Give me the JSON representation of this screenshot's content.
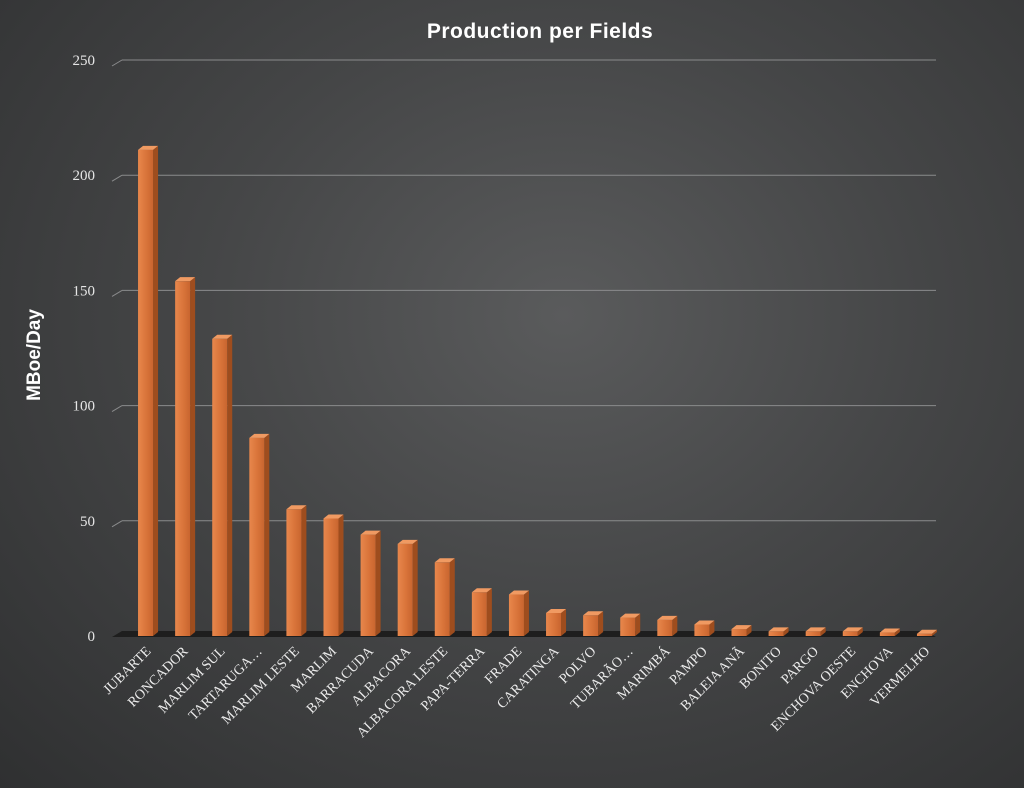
{
  "chart_data": {
    "type": "bar",
    "title": "Production per Fields",
    "ylabel": "MBoe/Day",
    "xlabel": "",
    "ylim": [
      0,
      250
    ],
    "yticks": [
      0,
      50,
      100,
      150,
      200,
      250
    ],
    "grid": true,
    "legend": "none",
    "categories": [
      "JUBARTE",
      "RONCADOR",
      "MARLIM SUL",
      "TARTARUGA…",
      "MARLIM LESTE",
      "MARLIM",
      "BARRACUDA",
      "ALBACORA",
      "ALBACORA LESTE",
      "PAPA-TERRA",
      "FRADE",
      "CARATINGA",
      "POLVO",
      "TUBARÃO…",
      "MARIMBÁ",
      "PAMPO",
      "BALEIA ANÃ",
      "BONITO",
      "PARGO",
      "ENCHOVA OESTE",
      "ENCHOVA",
      "VERMELHO"
    ],
    "values": [
      211,
      154,
      129,
      86,
      55,
      51,
      44,
      40,
      32,
      19,
      18,
      10,
      9,
      8,
      7,
      5,
      3,
      2,
      2,
      2,
      1.5,
      1
    ],
    "colors": {
      "bar_front": "#d9743a",
      "bar_side": "#9e4d1e",
      "bar_top": "#f09a62"
    }
  }
}
